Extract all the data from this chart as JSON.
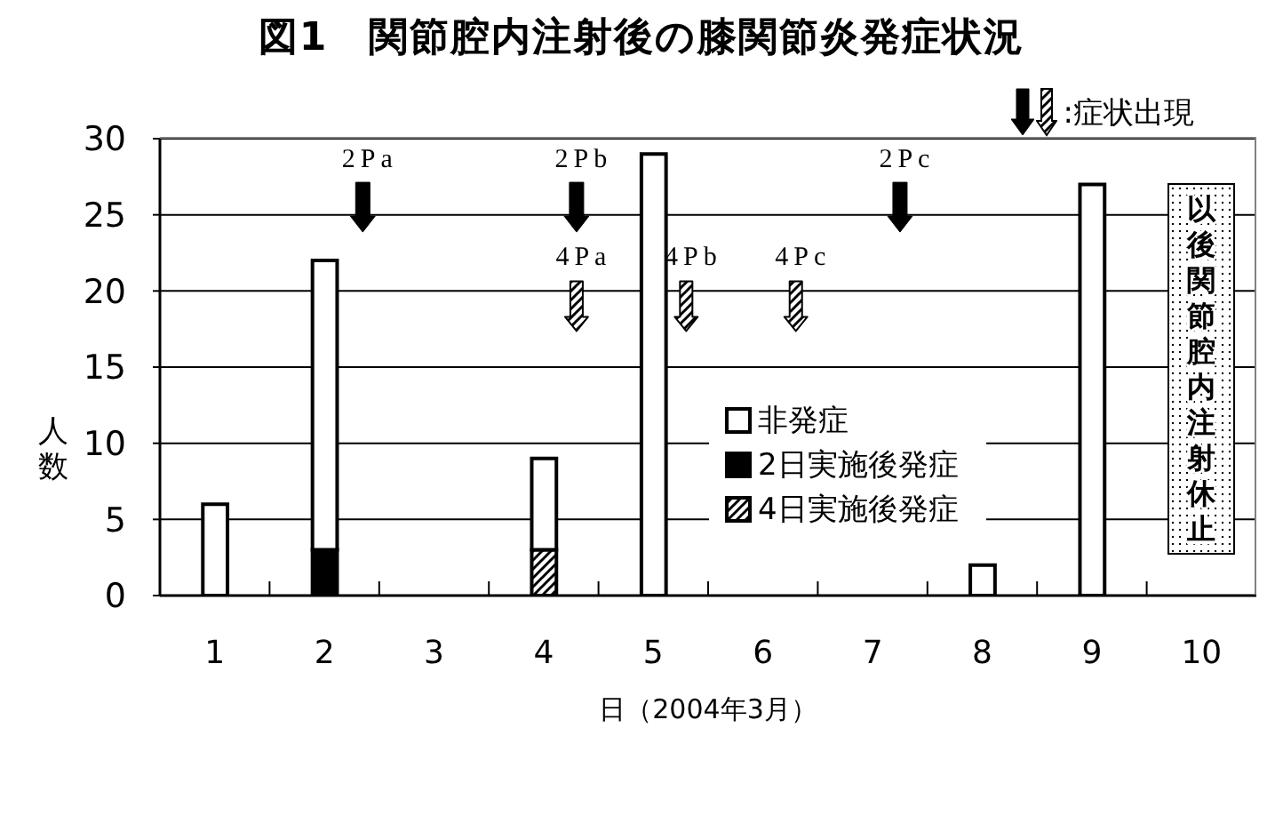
{
  "chart_data": {
    "type": "bar",
    "title": "図1　関節腔内注射後の膝関節炎発症状況",
    "xlabel": "日（2004年3月）",
    "ylabel": "人数",
    "x": [
      1,
      2,
      3,
      4,
      5,
      6,
      7,
      8,
      9
    ],
    "xlim": [
      0.5,
      10.5
    ],
    "xticks": [
      1,
      {
        "value": 1.5,
        "label": null
      },
      2,
      {
        "value": 2.5,
        "label": null
      },
      3,
      {
        "value": 3.5,
        "label": null
      },
      4,
      {
        "value": 4.5,
        "label": null
      },
      5,
      {
        "value": 5.5,
        "label": null
      },
      6,
      {
        "value": 6.5,
        "label": null
      },
      7,
      {
        "value": 7.5,
        "label": null
      },
      8,
      {
        "value": 8.5,
        "label": null
      },
      9,
      {
        "value": 9.5,
        "label": null
      },
      10
    ],
    "ylim": [
      0,
      30
    ],
    "yticks": [
      0,
      5,
      10,
      15,
      20,
      25,
      30
    ],
    "grid": "y",
    "stacked": true,
    "legend": "bottom",
    "series": [
      {
        "name": "4日実施後発症",
        "color": "#000000",
        "values": [
          null,
          null,
          null,
          3,
          null,
          null,
          null,
          null,
          null
        ]
      },
      {
        "name": "2日実施後発症",
        "color": "#000000",
        "values": [
          null,
          3,
          null,
          null,
          null,
          null,
          null,
          null,
          null
        ]
      },
      {
        "name": "非発症",
        "color": "#ffffff",
        "values": [
          6,
          19,
          null,
          6,
          29,
          null,
          null,
          2,
          27
        ]
      },
      {
        "type": "scatter",
        "color": "#000000",
        "x": [
          4.3,
          5.3,
          6.3
        ],
        "values": [
          19,
          19,
          19
        ]
      },
      {
        "type": "scatter",
        "color": "#000000",
        "x": [
          2.35,
          4.3,
          7.25
        ],
        "values": [
          25.5,
          25.5,
          25.5
        ]
      }
    ],
    "annotations": [
      ":症状出現",
      "以後関節腔内注射休止",
      {
        "text": "2Pa",
        "x": 2.35,
        "y": 25.5
      },
      {
        "text": "2Pb",
        "x": 4.3,
        "y": 25.5
      },
      {
        "text": "2Pc",
        "x": 7.25,
        "y": 25.5
      },
      {
        "text": "4Pa",
        "x": 4.3,
        "y": 19
      },
      {
        "text": "4Pb",
        "x": 5.3,
        "y": 19
      },
      {
        "text": "4Pc",
        "x": 6.3,
        "y": 19
      }
    ]
  }
}
